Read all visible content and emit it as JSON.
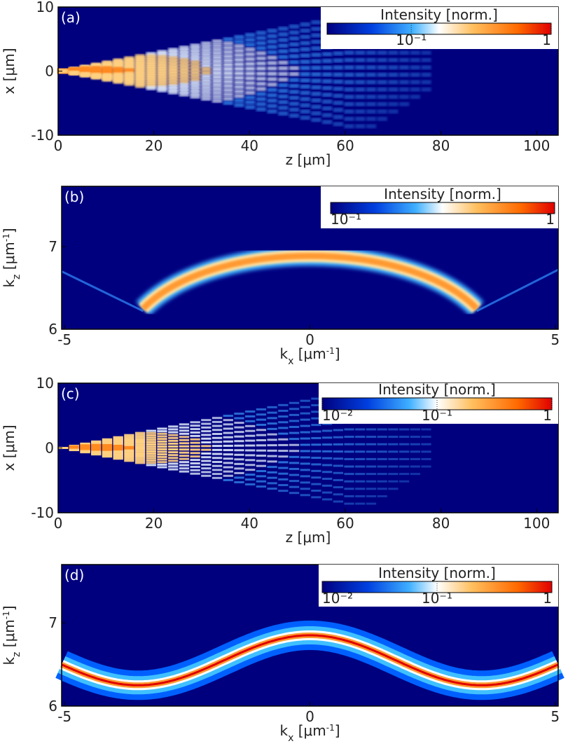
{
  "chart_data": [
    {
      "type": "heatmap",
      "title": "(a)",
      "xlabel": [
        {
          "text": "z [μm]"
        }
      ],
      "ylabel": [
        {
          "text": "x [μm]"
        }
      ],
      "xlim": [
        0,
        104.5
      ],
      "ylim": [
        -10,
        10
      ],
      "xticks": [
        0,
        20,
        40,
        60,
        80,
        100
      ],
      "yticks": [
        -10,
        0,
        10
      ],
      "colorbar": {
        "label": "Intensity [norm.]",
        "log": true,
        "lim": [
          0.025,
          1
        ],
        "ticks": [
          {
            "value": 0.1,
            "label": "10⁻¹"
          },
          1
        ]
      }
    },
    {
      "type": "heatmap",
      "title": "(b)",
      "xlabel": [
        {
          "text": "k"
        },
        {
          "text": "x",
          "script": "sub"
        },
        {
          "text": " [μm"
        },
        {
          "text": "-1",
          "script": "sup"
        },
        {
          "text": "]"
        }
      ],
      "ylabel": [
        {
          "text": "k"
        },
        {
          "text": "z",
          "script": "sub"
        },
        {
          "text": " [μm"
        },
        {
          "text": "-1",
          "script": "sup"
        },
        {
          "text": "]"
        }
      ],
      "xlim": [
        -5.06,
        5.06
      ],
      "ylim": [
        6,
        7.73
      ],
      "xticks": [
        -5,
        0,
        5
      ],
      "yticks": [
        6,
        7
      ],
      "colorbar": {
        "label": "Intensity [norm.]",
        "log": true,
        "lim": [
          0.1,
          1
        ],
        "ticks": [
          {
            "value": 0.1,
            "label": "10⁻¹"
          },
          1
        ]
      }
    },
    {
      "type": "heatmap",
      "title": "(c)",
      "xlabel": [
        {
          "text": "z [μm]"
        }
      ],
      "ylabel": [
        {
          "text": "x [μm]"
        }
      ],
      "xlim": [
        0,
        104.5
      ],
      "ylim": [
        -10,
        10
      ],
      "xticks": [
        0,
        20,
        40,
        60,
        80,
        100
      ],
      "yticks": [
        -10,
        0,
        10
      ],
      "colorbar": {
        "label": "Intensity [norm.]",
        "log": true,
        "lim": [
          0.01,
          1
        ],
        "ticks": [
          {
            "value": 0.01,
            "label": "10⁻²"
          },
          {
            "value": 0.1,
            "label": "10⁻¹"
          },
          1
        ]
      }
    },
    {
      "type": "heatmap",
      "title": "(d)",
      "xlabel": [
        {
          "text": "k"
        },
        {
          "text": "x",
          "script": "sub"
        },
        {
          "text": " [μm"
        },
        {
          "text": "-1",
          "script": "sup"
        },
        {
          "text": "]"
        }
      ],
      "ylabel": [
        {
          "text": "k"
        },
        {
          "text": "z",
          "script": "sub"
        },
        {
          "text": " [μm"
        },
        {
          "text": "-1",
          "script": "sup"
        },
        {
          "text": "]"
        }
      ],
      "xlim": [
        -5.06,
        5.06
      ],
      "ylim": [
        6,
        7.7
      ],
      "xticks": [
        -5,
        0,
        5
      ],
      "yticks": [
        6,
        7
      ],
      "colorbar": {
        "label": "Intensity [norm.]",
        "log": true,
        "lim": [
          0.01,
          1
        ],
        "ticks": [
          {
            "value": 0.01,
            "label": "10⁻²"
          },
          {
            "value": 0.1,
            "label": "10⁻¹"
          },
          1
        ]
      }
    }
  ]
}
